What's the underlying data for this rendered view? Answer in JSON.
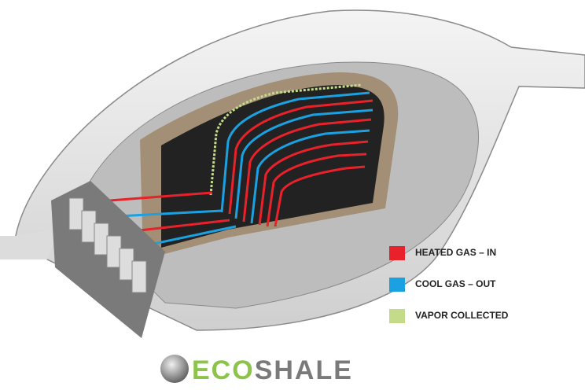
{
  "legend": [
    {
      "label": "HEATED GAS – IN",
      "color": "#e8212a"
    },
    {
      "label": "COOL GAS – OUT",
      "color": "#1ba1e2"
    },
    {
      "label": "VAPOR COLLECTED",
      "color": "#c4dc8a"
    }
  ],
  "logo": {
    "prefix": "ECO",
    "suffix": "SHALE"
  }
}
